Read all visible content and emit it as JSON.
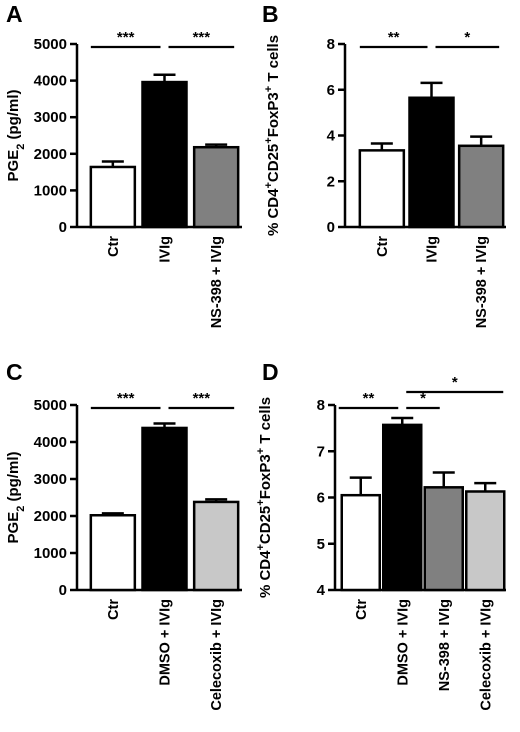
{
  "chart_data": [
    {
      "type": "bar",
      "panel": "A",
      "categories": [
        "Ctr",
        "IVIg",
        "NS-398 + IVIg"
      ],
      "values": [
        1640,
        3960,
        2180
      ],
      "errors": [
        150,
        200,
        70
      ],
      "colors": [
        "#ffffff",
        "#000000",
        "#808080"
      ],
      "ylabel": "PGE2 (pg/ml)",
      "ylim": [
        0,
        5000
      ],
      "yticks": [
        0,
        1000,
        2000,
        3000,
        4000,
        5000
      ],
      "significance": [
        {
          "from": 0,
          "to": 1,
          "label": "***"
        },
        {
          "from": 1,
          "to": 2,
          "label": "***"
        }
      ]
    },
    {
      "type": "bar",
      "panel": "B",
      "categories": [
        "Ctr",
        "IVIg",
        "NS-398 + IVIg"
      ],
      "values": [
        3.35,
        5.65,
        3.55
      ],
      "errors": [
        0.3,
        0.65,
        0.4
      ],
      "colors": [
        "#ffffff",
        "#000000",
        "#808080"
      ],
      "ylabel": "% CD4+CD25+FoxP3+ T cells",
      "ylim": [
        0,
        8
      ],
      "yticks": [
        0,
        2,
        4,
        6,
        8
      ],
      "significance": [
        {
          "from": 0,
          "to": 1,
          "label": "**"
        },
        {
          "from": 1,
          "to": 2,
          "label": "*"
        }
      ]
    },
    {
      "type": "bar",
      "panel": "C",
      "categories": [
        "Ctr",
        "DMSO + IVIg",
        "Celecoxib + IVIg"
      ],
      "values": [
        2020,
        4380,
        2380
      ],
      "errors": [
        50,
        120,
        70
      ],
      "colors": [
        "#ffffff",
        "#000000",
        "#c8c8c8"
      ],
      "ylabel": "PGE2 (pg/ml)",
      "ylim": [
        0,
        5000
      ],
      "yticks": [
        0,
        1000,
        2000,
        3000,
        4000,
        5000
      ],
      "significance": [
        {
          "from": 0,
          "to": 1,
          "label": "***"
        },
        {
          "from": 1,
          "to": 2,
          "label": "***"
        }
      ]
    },
    {
      "type": "bar",
      "panel": "D",
      "categories": [
        "Ctr",
        "DMSO + IVIg",
        "NS-398 + IVIg",
        "Celecoxib + IVIg"
      ],
      "values": [
        6.05,
        7.57,
        6.22,
        6.13
      ],
      "errors": [
        0.38,
        0.15,
        0.32,
        0.18
      ],
      "colors": [
        "#ffffff",
        "#000000",
        "#808080",
        "#c8c8c8"
      ],
      "ylabel": "% CD4+CD25+FoxP3+ T cells",
      "ylim": [
        4,
        8
      ],
      "yticks": [
        4,
        5,
        6,
        7,
        8
      ],
      "significance": [
        {
          "from": 0,
          "to": 1,
          "label": "**"
        },
        {
          "from": 1,
          "to": 2,
          "label": "*"
        },
        {
          "from": 1,
          "to": 3,
          "label": "*"
        }
      ]
    }
  ]
}
